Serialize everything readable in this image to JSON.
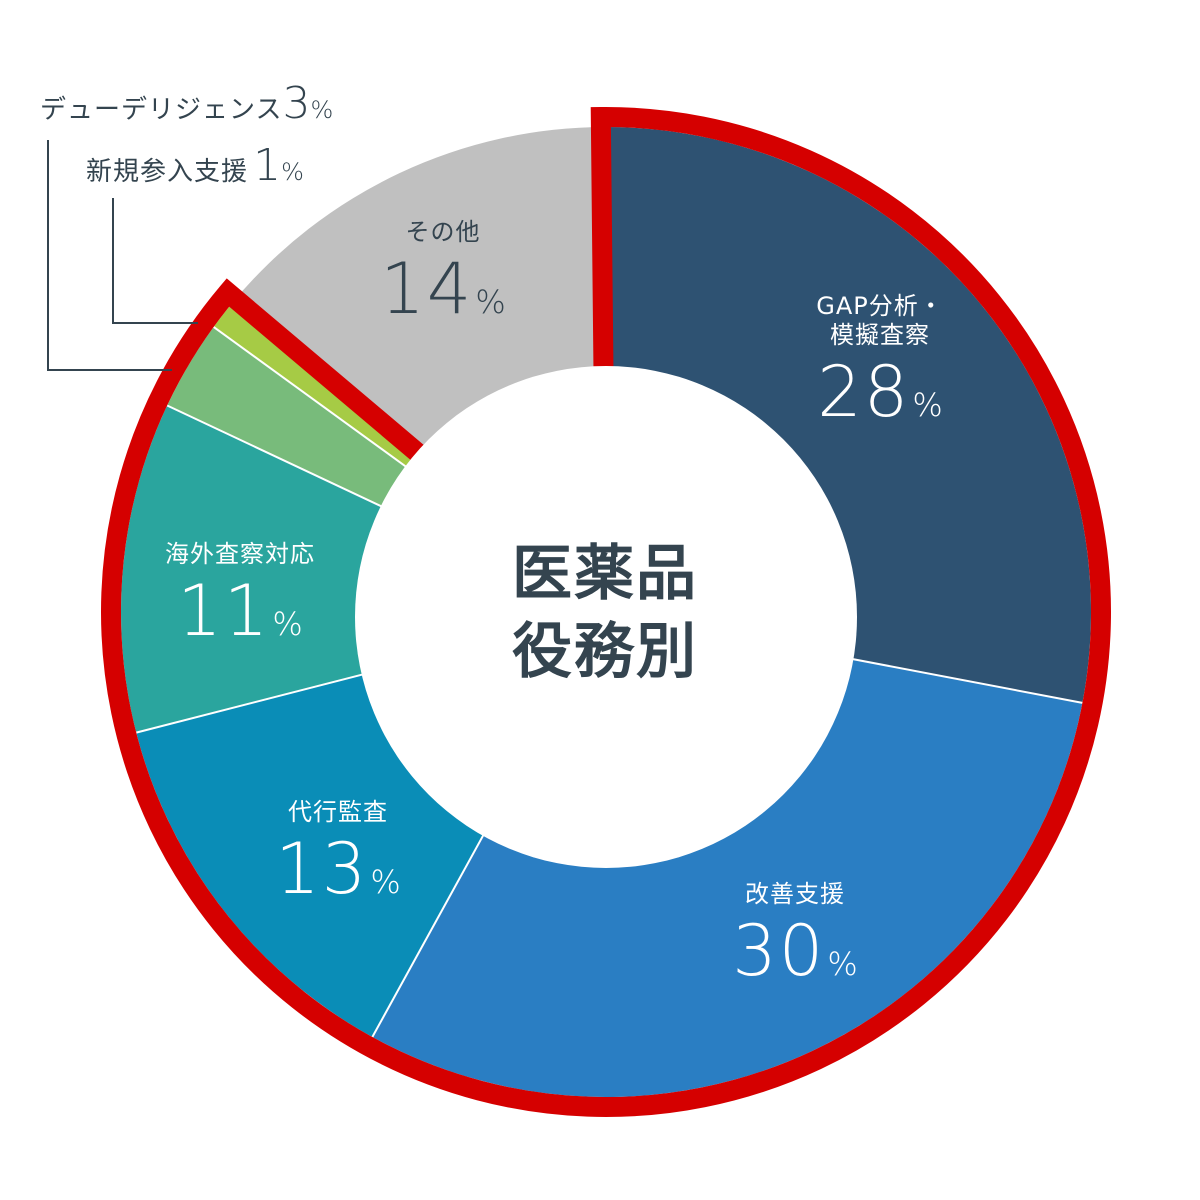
{
  "chart_data": {
    "type": "pie",
    "subtype": "donut",
    "title": "医薬品 役務別",
    "title_lines": [
      "医薬品",
      "役務別"
    ],
    "unit": "%",
    "start_angle_deg": 0,
    "direction": "clockwise",
    "highlight": {
      "description": "Red outline around GAP分析・模擬査察 through 新規参入支援",
      "color": "#d50000",
      "from_index": 0,
      "to_index": 5
    },
    "slices": [
      {
        "label": "GAP分析・模擬査察",
        "label_lines": [
          "GAP分析・",
          "模擬査察"
        ],
        "value": 28,
        "color": "#2e5272"
      },
      {
        "label": "改善支援",
        "label_lines": [
          "改善支援"
        ],
        "value": 30,
        "color": "#2a7ec3"
      },
      {
        "label": "代行監査",
        "label_lines": [
          "代行監査"
        ],
        "value": 13,
        "color": "#0a8db7"
      },
      {
        "label": "海外査察対応",
        "label_lines": [
          "海外査察対応"
        ],
        "value": 11,
        "color": "#2aa59e"
      },
      {
        "label": "デューデリジェンス",
        "label_lines": [
          "デューデリジェンス"
        ],
        "value": 3,
        "color": "#78bb7b"
      },
      {
        "label": "新規参入支援",
        "label_lines": [
          "新規参入支援"
        ],
        "value": 1,
        "color": "#a6cb45"
      },
      {
        "label": "その他",
        "label_lines": [
          "その他"
        ],
        "value": 14,
        "color": "#c0c0c0"
      }
    ]
  },
  "labels": {
    "gap": {
      "line1": "GAP分析・",
      "line2": "模擬査察",
      "value": "28",
      "pct": "%"
    },
    "kaizen": {
      "line1": "改善支援",
      "value": "30",
      "pct": "%"
    },
    "daiko": {
      "line1": "代行監査",
      "value": "13",
      "pct": "%"
    },
    "kaigai": {
      "line1": "海外査察対応",
      "value": "11",
      "pct": "%"
    },
    "sonota": {
      "line1": "その他",
      "value": "14",
      "pct": "%"
    },
    "dd": {
      "line1": "デューデリジェンス",
      "value": "3",
      "pct": "%"
    },
    "shinki": {
      "line1": "新規参入支援",
      "value": "1",
      "pct": "%"
    }
  },
  "center": {
    "line1": "医薬品",
    "line2": "役務別"
  }
}
